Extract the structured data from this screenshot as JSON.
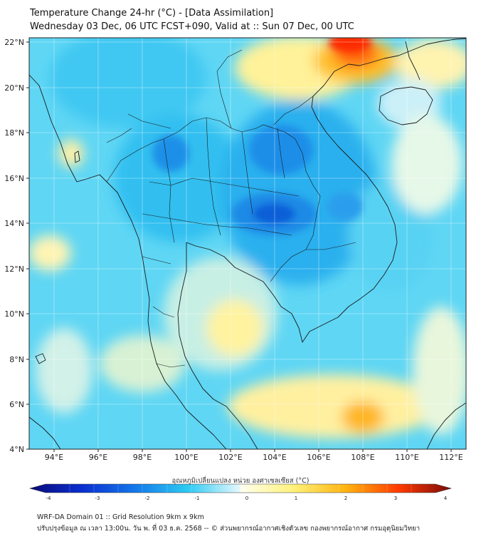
{
  "header": {
    "title": "Temperature Change 24-hr (°C) - [Data Assimilation]",
    "subtitle": "Wednesday 03 Dec, 06 UTC FCST+090, Valid at :: Sun 07 Dec, 00 UTC"
  },
  "map": {
    "lat_labels": [
      "22°N",
      "20°N",
      "18°N",
      "16°N",
      "14°N",
      "12°N",
      "10°N",
      "8°N",
      "6°N",
      "4°N"
    ],
    "lon_labels": [
      "94°E",
      "96°E",
      "98°E",
      "100°E",
      "102°E",
      "104°E",
      "106°E",
      "108°E",
      "110°E",
      "112°E"
    ],
    "lat_range": [
      4,
      22.2
    ],
    "lon_range": [
      93,
      112.3
    ]
  },
  "colorbar": {
    "title": "อุณหภูมิเปลี่ยนแปลง หน่วย องศาเซลเซียส (°C)",
    "ticks": [
      "-4",
      "-3",
      "-2",
      "-1",
      "0",
      "1",
      "2",
      "3",
      "4"
    ],
    "min": -4,
    "max": 4
  },
  "footer": {
    "line1": "WRF-DA Domain 01 :: Grid Resolution 9km x 9km",
    "line2": "ปรับปรุงข้อมูล ณ เวลา 13:00น. วัน พ. ที่ 03 ธ.ค. 2568 -- © ส่วนพยากรณ์อากาศเชิงตัวเลข กองพยากรณ์อากาศ กรมอุตุนิยมวิทยา"
  }
}
